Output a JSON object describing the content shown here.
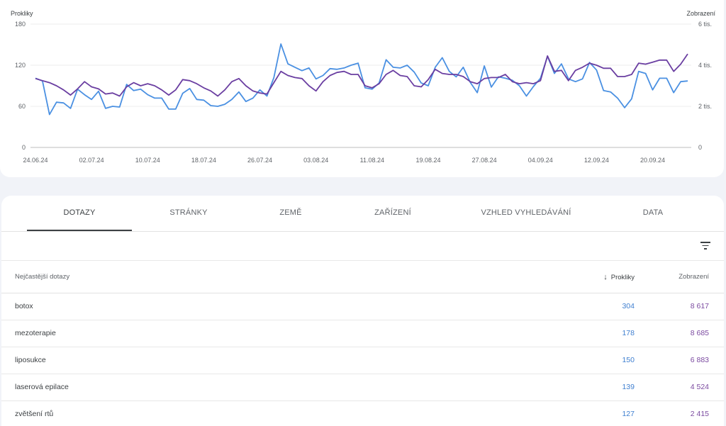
{
  "chart_data": {
    "type": "line",
    "ylabel_left": "Prokliky",
    "ylabel_right": "Zobrazení",
    "left_ticks": [
      "180",
      "120",
      "60",
      "0"
    ],
    "right_ticks": [
      "6 tis.",
      "4 tis.",
      "2 tis.",
      "0"
    ],
    "ylim_left": [
      0,
      180
    ],
    "ylim_right": [
      0,
      6000
    ],
    "x_tick_labels": [
      "24.06.24",
      "02.07.24",
      "10.07.24",
      "18.07.24",
      "26.07.24",
      "03.08.24",
      "11.08.24",
      "19.08.24",
      "27.08.24",
      "04.09.24",
      "12.09.24",
      "20.09.24"
    ],
    "x_start": "24.06.24",
    "x_end": "27.09.24",
    "grid": true,
    "series": [
      {
        "name": "Prokliky",
        "axis": "left",
        "color": "#4a90e2",
        "values": [
          101,
          97,
          48,
          66,
          65,
          57,
          85,
          77,
          70,
          82,
          57,
          60,
          59,
          92,
          83,
          85,
          77,
          72,
          72,
          56,
          56,
          79,
          86,
          70,
          69,
          61,
          60,
          63,
          70,
          81,
          67,
          72,
          84,
          75,
          102,
          151,
          122,
          117,
          112,
          116,
          100,
          105,
          115,
          114,
          116,
          120,
          123,
          87,
          85,
          94,
          128,
          117,
          116,
          120,
          110,
          94,
          90,
          117,
          131,
          111,
          103,
          117,
          95,
          80,
          119,
          88,
          103,
          101,
          98,
          90,
          75,
          89,
          101,
          133,
          108,
          122,
          100,
          96,
          100,
          124,
          113,
          83,
          81,
          72,
          58,
          71,
          111,
          108,
          84,
          101,
          101,
          80,
          96,
          97
        ],
        "markers": false
      },
      {
        "name": "Zobrazení",
        "axis": "right",
        "color": "#6a3ea1",
        "values": [
          3350,
          3250,
          3150,
          3000,
          2800,
          2550,
          2850,
          3200,
          2950,
          2850,
          2600,
          2650,
          2500,
          2950,
          3150,
          3000,
          3100,
          3000,
          2800,
          2550,
          2800,
          3300,
          3250,
          3100,
          2900,
          2750,
          2500,
          2800,
          3200,
          3350,
          3000,
          2750,
          2650,
          2600,
          3150,
          3700,
          3500,
          3400,
          3350,
          3000,
          2750,
          3200,
          3500,
          3650,
          3700,
          3550,
          3550,
          3000,
          2900,
          3100,
          3550,
          3750,
          3500,
          3450,
          3000,
          2950,
          3300,
          3800,
          3600,
          3550,
          3550,
          3450,
          3200,
          3100,
          3350,
          3400,
          3400,
          3550,
          3200,
          3100,
          3150,
          3100,
          3250,
          4450,
          3700,
          3750,
          3250,
          3750,
          3900,
          4100,
          4000,
          3850,
          3850,
          3450,
          3450,
          3550,
          4100,
          4050,
          4150,
          4250,
          4250,
          3700,
          4050,
          4550
        ],
        "markers": false
      }
    ]
  },
  "tabs": [
    "DOTAZY",
    "STRÁNKY",
    "ZEMĚ",
    "ZAŘÍZENÍ",
    "VZHLED VYHLEDÁVÁNÍ",
    "DATA"
  ],
  "active_tab": "DOTAZY",
  "filter_icon": "filter-icon",
  "table": {
    "col_query": "Nejčastější dotazy",
    "col_clicks": "Prokliky",
    "col_impressions": "Zobrazení",
    "sort_icon": "arrow-down-icon",
    "rows": [
      {
        "query": "botox",
        "clicks": "304",
        "impressions": "8 617"
      },
      {
        "query": "mezoterapie",
        "clicks": "178",
        "impressions": "8 685"
      },
      {
        "query": "liposukce",
        "clicks": "150",
        "impressions": "6 883"
      },
      {
        "query": "laserová epilace",
        "clicks": "139",
        "impressions": "4 524"
      },
      {
        "query": "zvětšení rtů",
        "clicks": "127",
        "impressions": "2 415"
      }
    ]
  },
  "colors": {
    "clicks": "#3f7fd0",
    "impressions": "#7b4aa0",
    "background": "#f1f3f8"
  }
}
